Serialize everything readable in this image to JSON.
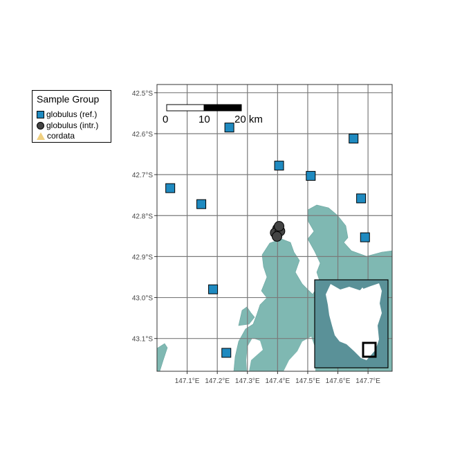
{
  "legend": {
    "title": "Sample Group",
    "items": [
      {
        "label": "globulus (ref.)",
        "shape": "square",
        "color": "#1f8ac0"
      },
      {
        "label": "globulus (intr.)",
        "shape": "circle",
        "color": "#444444"
      },
      {
        "label": "cordata",
        "shape": "triangle",
        "color": "#f0d080"
      }
    ]
  },
  "map": {
    "land_color": "#7fb8b2",
    "inset_color": "#5a9198",
    "lat_ticks": [
      "42.5°S",
      "42.6°S",
      "42.7°S",
      "42.8°S",
      "42.9°S",
      "43.0°S",
      "43.1°S"
    ],
    "lon_ticks": [
      "147.1°E",
      "147.2°E",
      "147.3°E",
      "147.4°E",
      "147.5°E",
      "147.6°E",
      "147.7°E"
    ],
    "lon_range": [
      147.0,
      147.78
    ],
    "lat_range": [
      -43.18,
      -42.48
    ],
    "scale_bar": {
      "labels": [
        "0",
        "10",
        "20 km"
      ]
    },
    "points": [
      {
        "group": "globulus (ref.)",
        "lon": 147.24,
        "lat": -42.585
      },
      {
        "group": "globulus (ref.)",
        "lon": 147.405,
        "lat": -42.678
      },
      {
        "group": "globulus (ref.)",
        "lon": 147.51,
        "lat": -42.703
      },
      {
        "group": "globulus (ref.)",
        "lon": 147.652,
        "lat": -42.612
      },
      {
        "group": "globulus (ref.)",
        "lon": 147.044,
        "lat": -42.733
      },
      {
        "group": "globulus (ref.)",
        "lon": 147.147,
        "lat": -42.772
      },
      {
        "group": "globulus (ref.)",
        "lon": 147.677,
        "lat": -42.758
      },
      {
        "group": "globulus (ref.)",
        "lon": 147.69,
        "lat": -42.853
      },
      {
        "group": "globulus (ref.)",
        "lon": 147.186,
        "lat": -42.98
      },
      {
        "group": "globulus (ref.)",
        "lon": 147.23,
        "lat": -43.135
      },
      {
        "group": "globulus (intr.)",
        "lon": 147.4,
        "lat": -42.832
      },
      {
        "group": "globulus (intr.)",
        "lon": 147.392,
        "lat": -42.842
      },
      {
        "group": "globulus (intr.)",
        "lon": 147.408,
        "lat": -42.838
      },
      {
        "group": "globulus (intr.)",
        "lon": 147.398,
        "lat": -42.851
      },
      {
        "group": "globulus (intr.)",
        "lon": 147.405,
        "lat": -42.826
      }
    ]
  }
}
